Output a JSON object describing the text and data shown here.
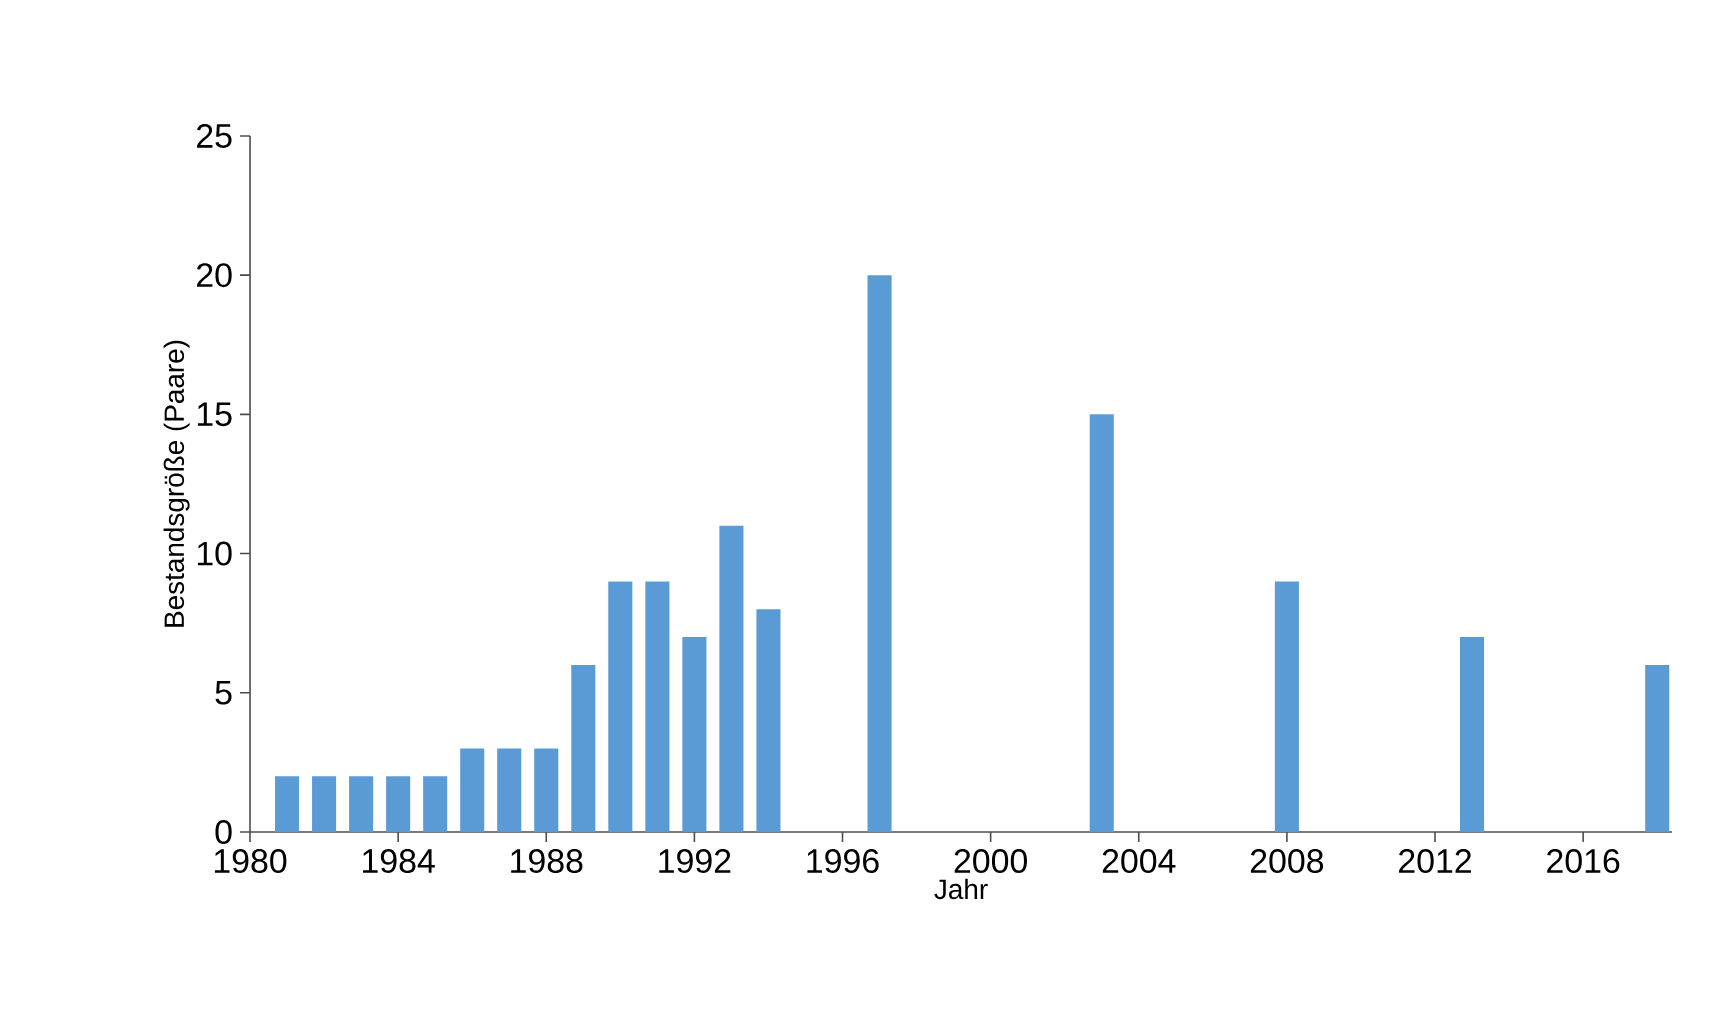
{
  "chart_data": {
    "type": "bar",
    "xlabel": "Jahr",
    "ylabel": "Bestandsgröße (Paare)",
    "x": [
      1981,
      1982,
      1983,
      1984,
      1985,
      1986,
      1987,
      1988,
      1989,
      1990,
      1991,
      1992,
      1993,
      1994,
      1997,
      2003,
      2008,
      2013,
      2018
    ],
    "values": [
      2,
      2,
      2,
      2,
      2,
      3,
      3,
      3,
      6,
      9,
      9,
      7,
      11,
      8,
      20,
      15,
      9,
      7,
      6
    ],
    "color": "#5b9bd5",
    "xlim": [
      1980,
      2018.4
    ],
    "xticks": [
      1980,
      1984,
      1988,
      1992,
      1996,
      2000,
      2004,
      2008,
      2012,
      2016
    ],
    "ylim": [
      0,
      25
    ],
    "yticks": [
      0,
      5,
      10,
      15,
      20,
      25
    ],
    "grid": false
  }
}
